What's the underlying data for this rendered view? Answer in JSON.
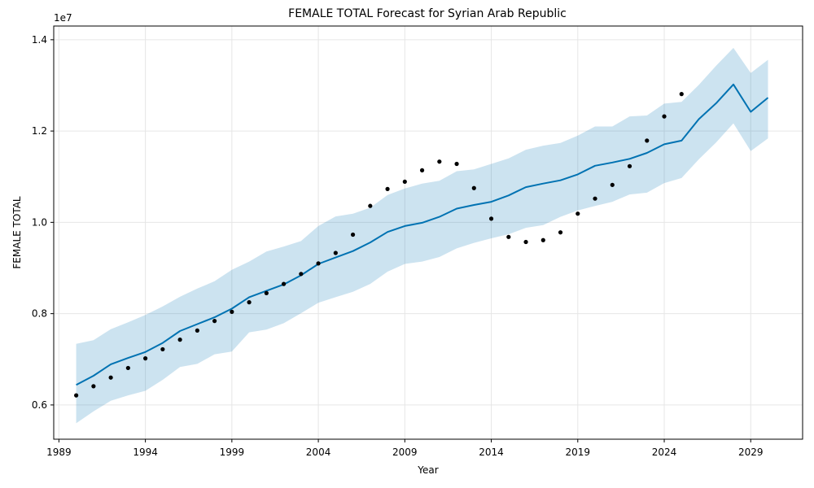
{
  "chart_data": {
    "type": "line",
    "title": "FEMALE TOTAL Forecast for Syrian Arab Republic",
    "xlabel": "Year",
    "ylabel": "FEMALE TOTAL",
    "y_offset_label": "1e7",
    "xlim": [
      1988.7,
      2032.0
    ],
    "ylim": [
      5.25,
      14.3
    ],
    "x_ticks": [
      1989,
      1994,
      1999,
      2004,
      2009,
      2014,
      2019,
      2024,
      2029
    ],
    "x_tick_labels": [
      "1989",
      "1994",
      "1999",
      "2004",
      "2009",
      "2014",
      "2019",
      "2024",
      "2029"
    ],
    "y_ticks": [
      6.0,
      8.0,
      10.0,
      12.0,
      14.0
    ],
    "y_tick_labels": [
      "0.6",
      "0.8",
      "1.0",
      "1.2",
      "1.4"
    ],
    "grid": true,
    "colors": {
      "forecast_line": "#0072b2",
      "interval_fill": "#0072b2",
      "observed_points": "#000000",
      "grid": "#e6e6e6"
    },
    "x": [
      1990,
      1991,
      1992,
      1993,
      1994,
      1995,
      1996,
      1997,
      1998,
      1999,
      2000,
      2001,
      2002,
      2003,
      2004,
      2005,
      2006,
      2007,
      2008,
      2009,
      2010,
      2011,
      2012,
      2013,
      2014,
      2015,
      2016,
      2017,
      2018,
      2019,
      2020,
      2021,
      2022,
      2023,
      2024,
      2025,
      2026,
      2027,
      2028,
      2029,
      2030
    ],
    "series": [
      {
        "role": "forecast",
        "values": [
          6.44,
          6.64,
          6.89,
          7.03,
          7.16,
          7.36,
          7.62,
          7.77,
          7.92,
          8.11,
          8.36,
          8.5,
          8.64,
          8.84,
          9.09,
          9.23,
          9.37,
          9.56,
          9.79,
          9.92,
          9.99,
          10.12,
          10.3,
          10.38,
          10.45,
          10.59,
          10.77,
          10.85,
          10.92,
          11.05,
          11.24,
          11.31,
          11.39,
          11.52,
          11.71,
          11.79,
          12.26,
          12.61,
          13.02,
          12.42,
          12.73
        ]
      },
      {
        "role": "forecast_upper",
        "values": [
          7.34,
          7.42,
          7.66,
          7.81,
          7.97,
          8.16,
          8.37,
          8.55,
          8.71,
          8.96,
          9.14,
          9.36,
          9.47,
          9.59,
          9.92,
          10.13,
          10.19,
          10.32,
          10.6,
          10.74,
          10.85,
          10.91,
          11.12,
          11.16,
          11.28,
          11.4,
          11.59,
          11.68,
          11.74,
          11.9,
          12.1,
          12.1,
          12.32,
          12.34,
          12.6,
          12.64,
          13.01,
          13.43,
          13.82,
          13.27,
          13.56
        ]
      },
      {
        "role": "forecast_lower",
        "values": [
          5.6,
          5.86,
          6.09,
          6.21,
          6.31,
          6.55,
          6.83,
          6.9,
          7.11,
          7.17,
          7.59,
          7.65,
          7.79,
          8.01,
          8.24,
          8.36,
          8.48,
          8.65,
          8.92,
          9.09,
          9.14,
          9.24,
          9.43,
          9.55,
          9.65,
          9.74,
          9.88,
          9.94,
          10.12,
          10.26,
          10.36,
          10.45,
          10.61,
          10.65,
          10.86,
          10.97,
          11.38,
          11.75,
          12.17,
          11.56,
          11.84
        ]
      },
      {
        "role": "observed",
        "x": [
          1990,
          1991,
          1992,
          1993,
          1994,
          1995,
          1996,
          1997,
          1998,
          1999,
          2000,
          2001,
          2002,
          2003,
          2004,
          2005,
          2006,
          2007,
          2008,
          2009,
          2010,
          2011,
          2012,
          2013,
          2014,
          2015,
          2016,
          2017,
          2018,
          2019,
          2020,
          2021,
          2022,
          2023,
          2024,
          2025
        ],
        "values": [
          6.21,
          6.41,
          6.6,
          6.81,
          7.02,
          7.22,
          7.43,
          7.63,
          7.84,
          8.04,
          8.25,
          8.45,
          8.65,
          8.87,
          9.1,
          9.33,
          9.73,
          10.36,
          10.73,
          10.89,
          11.14,
          11.33,
          11.28,
          10.75,
          10.08,
          9.68,
          9.57,
          9.61,
          9.78,
          10.19,
          10.52,
          10.82,
          11.23,
          11.79,
          12.32,
          12.81
        ]
      }
    ]
  }
}
